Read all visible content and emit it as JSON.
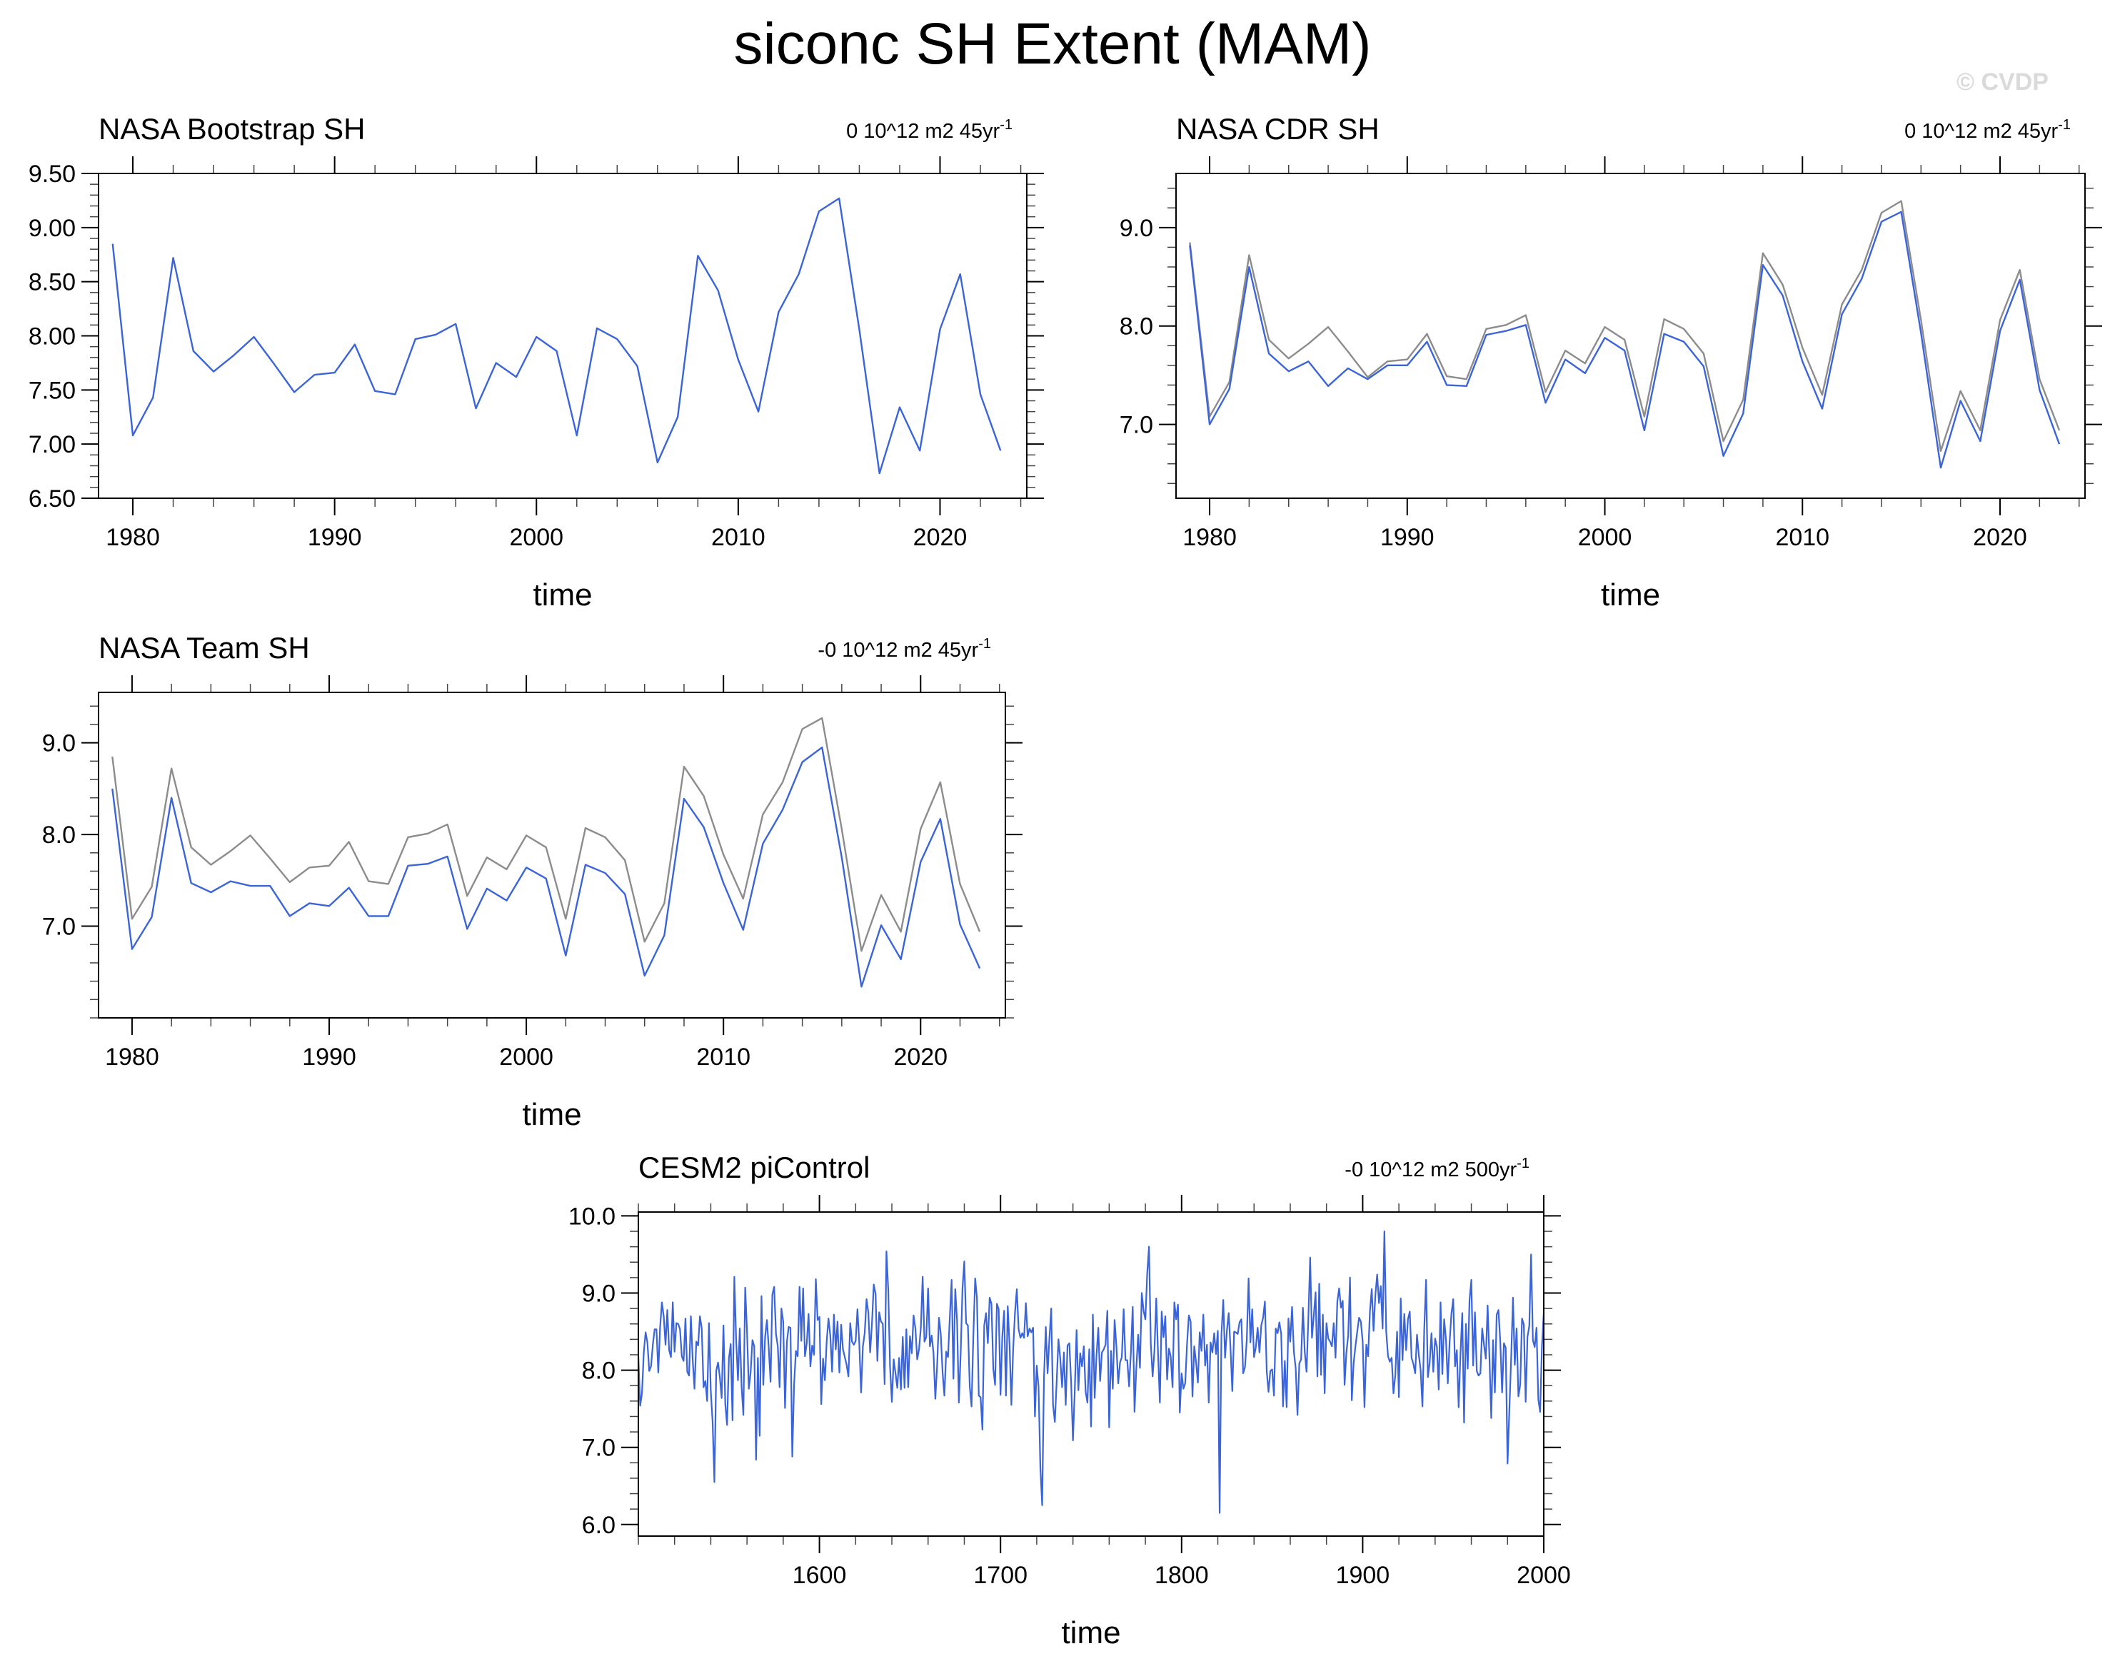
{
  "title": "siconc SH Extent (MAM)",
  "watermark": "© CVDP",
  "colors": {
    "series": "#3a64d8",
    "reference": "#8c8c8c",
    "frame": "#000000"
  },
  "chart_data": [
    {
      "type": "line",
      "title": "NASA Bootstrap SH",
      "trend_label": "0 10^12 m2 45yr",
      "trend_superscript": "-1",
      "xlabel": "time",
      "xlim": [
        1978.3,
        2024.3
      ],
      "ylim": [
        6.5,
        9.5
      ],
      "xticks": [
        1980,
        1990,
        2000,
        2010,
        2020
      ],
      "yticks": [
        6.5,
        7.0,
        7.5,
        8.0,
        8.5,
        9.0,
        9.5
      ],
      "ytick_labels": [
        "6.50",
        "7.00",
        "7.50",
        "8.00",
        "8.50",
        "9.00",
        "9.50"
      ],
      "x": [
        1979,
        1980,
        1981,
        1982,
        1983,
        1984,
        1985,
        1986,
        1987,
        1988,
        1989,
        1990,
        1991,
        1992,
        1993,
        1994,
        1995,
        1996,
        1997,
        1998,
        1999,
        2000,
        2001,
        2002,
        2003,
        2004,
        2005,
        2006,
        2007,
        2008,
        2009,
        2010,
        2011,
        2012,
        2013,
        2014,
        2015,
        2016,
        2017,
        2018,
        2019,
        2020,
        2021,
        2022,
        2023
      ],
      "series": [
        {
          "role": "observed",
          "values": [
            8.85,
            7.08,
            7.43,
            8.72,
            7.86,
            7.67,
            7.82,
            7.99,
            7.74,
            7.48,
            7.64,
            7.66,
            7.92,
            7.49,
            7.46,
            7.97,
            8.01,
            8.11,
            7.33,
            7.75,
            7.62,
            7.99,
            7.86,
            7.08,
            8.07,
            7.97,
            7.72,
            6.83,
            7.25,
            8.74,
            8.42,
            7.78,
            7.3,
            8.22,
            8.57,
            9.15,
            9.27,
            8.06,
            6.73,
            7.34,
            6.94,
            8.06,
            8.57,
            7.46,
            6.94
          ]
        }
      ]
    },
    {
      "type": "line",
      "title": "NASA CDR SH",
      "trend_label": "0 10^12 m2 45yr",
      "trend_superscript": "-1",
      "xlabel": "time",
      "xlim": [
        1978.3,
        2024.3
      ],
      "ylim": [
        6.25,
        9.55
      ],
      "xticks": [
        1980,
        1990,
        2000,
        2010,
        2020
      ],
      "yticks": [
        7.0,
        8.0,
        9.0
      ],
      "ytick_labels": [
        "7.0",
        "8.0",
        "9.0"
      ],
      "x": [
        1979,
        1980,
        1981,
        1982,
        1983,
        1984,
        1985,
        1986,
        1987,
        1988,
        1989,
        1990,
        1991,
        1992,
        1993,
        1994,
        1995,
        1996,
        1997,
        1998,
        1999,
        2000,
        2001,
        2002,
        2003,
        2004,
        2005,
        2006,
        2007,
        2008,
        2009,
        2010,
        2011,
        2012,
        2013,
        2014,
        2015,
        2016,
        2017,
        2018,
        2019,
        2020,
        2021,
        2022,
        2023
      ],
      "series": [
        {
          "role": "reference",
          "values": [
            8.85,
            7.08,
            7.43,
            8.72,
            7.86,
            7.67,
            7.82,
            7.99,
            7.74,
            7.48,
            7.64,
            7.66,
            7.92,
            7.49,
            7.46,
            7.97,
            8.01,
            8.11,
            7.33,
            7.75,
            7.62,
            7.99,
            7.86,
            7.08,
            8.07,
            7.97,
            7.72,
            6.83,
            7.25,
            8.74,
            8.42,
            7.78,
            7.3,
            8.22,
            8.57,
            9.15,
            9.27,
            8.06,
            6.73,
            7.34,
            6.94,
            8.06,
            8.57,
            7.46,
            6.94
          ]
        },
        {
          "role": "observed",
          "values": [
            8.82,
            7.0,
            7.36,
            8.6,
            7.72,
            7.54,
            7.64,
            7.39,
            7.57,
            7.46,
            7.6,
            7.6,
            7.84,
            7.4,
            7.39,
            7.91,
            7.95,
            8.01,
            7.22,
            7.66,
            7.52,
            7.88,
            7.75,
            6.94,
            7.92,
            7.84,
            7.59,
            6.68,
            7.11,
            8.62,
            8.31,
            7.64,
            7.16,
            8.12,
            8.48,
            9.06,
            9.16,
            7.93,
            6.56,
            7.24,
            6.83,
            7.95,
            8.47,
            7.35,
            6.8
          ]
        }
      ]
    },
    {
      "type": "line",
      "title": "NASA Team SH",
      "trend_label": "-0 10^12 m2 45yr",
      "trend_superscript": "-1",
      "xlabel": "time",
      "xlim": [
        1978.3,
        2024.3
      ],
      "ylim": [
        6.0,
        9.55
      ],
      "xticks": [
        1980,
        1990,
        2000,
        2010,
        2020
      ],
      "yticks": [
        7.0,
        8.0,
        9.0
      ],
      "ytick_labels": [
        "7.0",
        "8.0",
        "9.0"
      ],
      "x": [
        1979,
        1980,
        1981,
        1982,
        1983,
        1984,
        1985,
        1986,
        1987,
        1988,
        1989,
        1990,
        1991,
        1992,
        1993,
        1994,
        1995,
        1996,
        1997,
        1998,
        1999,
        2000,
        2001,
        2002,
        2003,
        2004,
        2005,
        2006,
        2007,
        2008,
        2009,
        2010,
        2011,
        2012,
        2013,
        2014,
        2015,
        2016,
        2017,
        2018,
        2019,
        2020,
        2021,
        2022,
        2023
      ],
      "series": [
        {
          "role": "reference",
          "values": [
            8.85,
            7.08,
            7.43,
            8.72,
            7.86,
            7.67,
            7.82,
            7.99,
            7.74,
            7.48,
            7.64,
            7.66,
            7.92,
            7.49,
            7.46,
            7.97,
            8.01,
            8.11,
            7.33,
            7.75,
            7.62,
            7.99,
            7.86,
            7.08,
            8.07,
            7.97,
            7.72,
            6.83,
            7.25,
            8.74,
            8.42,
            7.78,
            7.3,
            8.22,
            8.57,
            9.15,
            9.27,
            8.06,
            6.73,
            7.34,
            6.94,
            8.06,
            8.57,
            7.46,
            6.94
          ]
        },
        {
          "role": "observed",
          "values": [
            8.5,
            6.75,
            7.1,
            8.4,
            7.47,
            7.37,
            7.49,
            7.44,
            7.44,
            7.11,
            7.25,
            7.22,
            7.42,
            7.11,
            7.11,
            7.66,
            7.68,
            7.76,
            6.97,
            7.41,
            7.28,
            7.64,
            7.52,
            6.68,
            7.67,
            7.58,
            7.35,
            6.46,
            6.9,
            8.39,
            8.08,
            7.47,
            6.96,
            7.9,
            8.27,
            8.79,
            8.95,
            7.75,
            6.34,
            7.01,
            6.64,
            7.7,
            8.17,
            7.02,
            6.54
          ]
        }
      ]
    },
    {
      "type": "line",
      "title": "CESM2 piControl",
      "trend_label": "-0 10^12 m2 500yr",
      "trend_superscript": "-1",
      "xlabel": "time",
      "xlim": [
        1500,
        2000
      ],
      "ylim": [
        5.85,
        10.05
      ],
      "xticks": [
        1600,
        1700,
        1800,
        1900,
        2000
      ],
      "yticks": [
        6.0,
        7.0,
        8.0,
        9.0,
        10.0
      ],
      "ytick_labels": [
        "6.0",
        "7.0",
        "8.0",
        "9.0",
        "10.0"
      ],
      "x_start": 1500,
      "x_step": 1,
      "series": [
        {
          "role": "observed",
          "values": [
            8.18,
            7.54,
            7.7,
            8.23,
            8.49,
            8.36,
            7.99,
            8.05,
            8.33,
            8.53,
            8.53,
            7.97,
            8.55,
            8.88,
            8.7,
            8.33,
            8.78,
            8.26,
            8.17,
            8.88,
            8.24,
            8.61,
            8.6,
            8.53,
            8.18,
            8.12,
            8.67,
            7.98,
            7.93,
            8.7,
            8.14,
            7.76,
            8.37,
            8.32,
            8.7,
            8.54,
            7.78,
            7.86,
            7.6,
            8.61,
            7.73,
            7.33,
            6.55,
            7.99,
            8.1,
            7.91,
            7.64,
            8.58,
            7.56,
            7.29,
            8.15,
            8.34,
            7.35,
            9.21,
            8.4,
            7.87,
            8.54,
            7.79,
            7.42,
            9.07,
            8.51,
            7.76,
            7.97,
            8.39,
            8.31,
            6.84,
            8.16,
            7.15,
            8.96,
            7.81,
            8.43,
            8.65,
            8.29,
            7.85,
            8.98,
            9.08,
            8.47,
            8.31,
            7.78,
            8.8,
            8.63,
            7.51,
            8.36,
            8.56,
            8.55,
            6.88,
            7.81,
            8.25,
            8.18,
            9.08,
            8.38,
            9.06,
            8.18,
            8.35,
            8.73,
            8.05,
            8.32,
            8.2,
            9.18,
            8.65,
            8.69,
            7.56,
            8.15,
            7.87,
            8.37,
            8.67,
            8.45,
            7.98,
            8.72,
            8.27,
            8.63,
            7.97,
            8.59,
            8.27,
            8.17,
            8.07,
            7.92,
            8.61,
            8.37,
            8.33,
            8.38,
            8.79,
            8.35,
            7.71,
            8.31,
            8.48,
            8.92,
            8.75,
            8.23,
            8.6,
            9.11,
            8.99,
            8.12,
            8.75,
            8.63,
            8.6,
            7.82,
            9.54,
            9.04,
            8.04,
            7.59,
            8.14,
            7.96,
            7.77,
            8.16,
            7.75,
            8.43,
            7.77,
            8.53,
            7.78,
            8.44,
            8.22,
            8.71,
            8.54,
            8.14,
            8.27,
            8.55,
            9.21,
            8.37,
            8.43,
            9.06,
            8.31,
            8.45,
            8.22,
            7.63,
            8.06,
            8.68,
            8.47,
            7.97,
            7.67,
            8.24,
            8.17,
            8.69,
            9.17,
            7.89,
            9.05,
            8.64,
            7.58,
            8.22,
            9.06,
            9.41,
            8.61,
            8.58,
            7.79,
            7.53,
            8.45,
            9.19,
            8.93,
            7.67,
            7.65,
            7.23,
            8.58,
            8.74,
            8.35,
            8.94,
            8.86,
            8.02,
            7.81,
            8.86,
            8.79,
            7.68,
            8.44,
            8.77,
            7.67,
            8.83,
            8.32,
            7.55,
            8.28,
            8.75,
            9.05,
            8.53,
            8.42,
            8.48,
            8.42,
            8.87,
            8.44,
            8.54,
            8.49,
            8.55,
            7.4,
            8.06,
            7.78,
            6.74,
            6.25,
            7.9,
            8.56,
            7.96,
            8.41,
            8.8,
            7.55,
            7.33,
            7.85,
            8.4,
            8.15,
            7.78,
            8.23,
            7.55,
            8.32,
            8.35,
            7.84,
            7.09,
            7.73,
            8.52,
            7.74,
            8.22,
            8.05,
            8.31,
            7.72,
            7.58,
            8.27,
            7.27,
            8.72,
            7.64,
            8.19,
            8.55,
            7.86,
            8.23,
            8.27,
            8.33,
            8.77,
            7.26,
            8.25,
            7.76,
            8.65,
            8.31,
            7.83,
            8.1,
            8.17,
            8.79,
            8.13,
            8.13,
            7.79,
            8.23,
            8.82,
            7.46,
            8.03,
            8.46,
            8.03,
            9.0,
            8.77,
            8.66,
            9.25,
            9.6,
            8.34,
            7.92,
            8.25,
            8.93,
            8.21,
            7.58,
            8.76,
            8.43,
            8.7,
            7.88,
            8.28,
            8.18,
            7.78,
            8.88,
            8.66,
            8.85,
            7.45,
            7.96,
            7.76,
            7.83,
            8.34,
            8.71,
            8.63,
            7.66,
            8.31,
            8.1,
            7.84,
            8.49,
            8.25,
            8.72,
            8.06,
            8.33,
            7.58,
            8.36,
            8.23,
            8.48,
            8.21,
            8.51,
            6.15,
            8.46,
            8.91,
            8.16,
            8.51,
            8.74,
            8.29,
            7.73,
            8.5,
            8.49,
            8.47,
            8.62,
            8.66,
            7.96,
            8.04,
            8.4,
            9.19,
            8.36,
            8.79,
            8.17,
            8.3,
            8.55,
            8.23,
            8.58,
            8.68,
            8.89,
            7.99,
            7.72,
            7.99,
            8.01,
            7.67,
            8.54,
            8.48,
            8.62,
            8.47,
            7.53,
            8.12,
            7.52,
            8.67,
            8.37,
            8.82,
            8.24,
            8.03,
            7.42,
            8.09,
            8.14,
            8.81,
            8.24,
            7.98,
            8.67,
            9.46,
            8.42,
            8.71,
            9.01,
            7.92,
            9.12,
            7.94,
            8.72,
            7.7,
            8.61,
            8.41,
            8.37,
            8.31,
            8.61,
            8.16,
            8.89,
            9.06,
            8.81,
            8.9,
            7.81,
            8.23,
            8.45,
            9.2,
            7.61,
            8.09,
            8.31,
            8.5,
            8.68,
            8.63,
            8.37,
            7.52,
            8.33,
            8.18,
            8.76,
            9.05,
            8.51,
            8.97,
            9.24,
            8.87,
            9.09,
            8.54,
            9.8,
            8.5,
            8.18,
            8.11,
            8.16,
            7.7,
            7.93,
            8.5,
            7.65,
            8.93,
            8.13,
            8.73,
            8.26,
            8.66,
            8.76,
            8.16,
            8.08,
            7.96,
            8.46,
            8.2,
            8.0,
            7.53,
            8.53,
            9.17,
            7.91,
            8.1,
            8.48,
            7.98,
            8.41,
            8.3,
            7.75,
            8.88,
            7.95,
            8.66,
            8.4,
            7.83,
            8.36,
            8.73,
            8.92,
            8.05,
            8.26,
            7.52,
            8.21,
            8.74,
            7.32,
            8.6,
            8.02,
            8.91,
            9.17,
            8.06,
            8.75,
            7.99,
            7.93,
            7.96,
            8.54,
            8.33,
            8.15,
            8.84,
            8.16,
            7.38,
            8.39,
            7.71,
            8.72,
            8.78,
            8.36,
            7.71,
            8.35,
            8.29,
            6.79,
            7.48,
            8.16,
            8.94,
            8.07,
            8.54,
            7.66,
            7.81,
            8.67,
            8.59,
            7.59,
            8.43,
            8.57,
            9.5,
            8.39,
            8.3,
            8.55,
            7.62,
            7.46,
            8.31,
            8.75,
            8.33,
            8.47,
            9.23,
            7.75,
            7.49,
            8.46,
            7.92,
            8.11,
            7.04,
            6.85,
            8.03
          ]
        }
      ]
    }
  ]
}
